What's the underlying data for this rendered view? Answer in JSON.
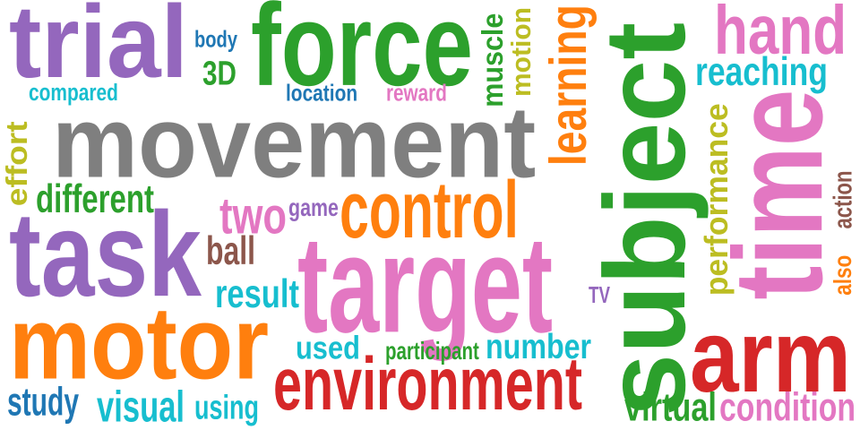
{
  "palette": {
    "purple": "#9467bd",
    "green": "#2ca02c",
    "blue": "#1f77b4",
    "cyan": "#17becf",
    "gray": "#7f7f7f",
    "orange": "#ff7f0e",
    "pink": "#e377c2",
    "red": "#d62728",
    "olive": "#bcbd22",
    "brown": "#8c564b"
  },
  "words": [
    {
      "id": "trial",
      "text": "trial",
      "color": "purple"
    },
    {
      "id": "force",
      "text": "force",
      "color": "green"
    },
    {
      "id": "hand",
      "text": "hand",
      "color": "pink"
    },
    {
      "id": "body",
      "text": "body",
      "color": "blue"
    },
    {
      "id": "3d",
      "text": "3D",
      "color": "green"
    },
    {
      "id": "compared",
      "text": "compared",
      "color": "cyan"
    },
    {
      "id": "location",
      "text": "location",
      "color": "blue"
    },
    {
      "id": "reward",
      "text": "reward",
      "color": "pink"
    },
    {
      "id": "muscle",
      "text": "muscle",
      "color": "green"
    },
    {
      "id": "motion",
      "text": "motion",
      "color": "olive"
    },
    {
      "id": "learning",
      "text": "learning",
      "color": "orange"
    },
    {
      "id": "subject",
      "text": "subject",
      "color": "green"
    },
    {
      "id": "reaching",
      "text": "reaching",
      "color": "cyan"
    },
    {
      "id": "movement",
      "text": "movement",
      "color": "gray"
    },
    {
      "id": "effort",
      "text": "effort",
      "color": "olive"
    },
    {
      "id": "different",
      "text": "different",
      "color": "green"
    },
    {
      "id": "time",
      "text": "time",
      "color": "pink"
    },
    {
      "id": "performance",
      "text": "performance",
      "color": "olive"
    },
    {
      "id": "action",
      "text": "action",
      "color": "brown"
    },
    {
      "id": "also",
      "text": "also",
      "color": "orange"
    },
    {
      "id": "two",
      "text": "two",
      "color": "pink"
    },
    {
      "id": "game",
      "text": "game",
      "color": "purple"
    },
    {
      "id": "control",
      "text": "control",
      "color": "orange"
    },
    {
      "id": "task",
      "text": "task",
      "color": "purple"
    },
    {
      "id": "ball",
      "text": "ball",
      "color": "brown"
    },
    {
      "id": "target",
      "text": "target",
      "color": "pink"
    },
    {
      "id": "result",
      "text": "result",
      "color": "cyan"
    },
    {
      "id": "tv",
      "text": "TV",
      "color": "purple"
    },
    {
      "id": "motor",
      "text": "motor",
      "color": "orange"
    },
    {
      "id": "used",
      "text": "used",
      "color": "cyan"
    },
    {
      "id": "participant",
      "text": "participant",
      "color": "green"
    },
    {
      "id": "number",
      "text": "number",
      "color": "cyan"
    },
    {
      "id": "arm",
      "text": "arm",
      "color": "red"
    },
    {
      "id": "environment",
      "text": "environment",
      "color": "red"
    },
    {
      "id": "study",
      "text": "study",
      "color": "blue"
    },
    {
      "id": "visual",
      "text": "visual",
      "color": "cyan"
    },
    {
      "id": "using",
      "text": "using",
      "color": "cyan"
    },
    {
      "id": "virtual",
      "text": "virtual",
      "color": "green"
    },
    {
      "id": "condition",
      "text": "condition",
      "color": "pink"
    }
  ]
}
